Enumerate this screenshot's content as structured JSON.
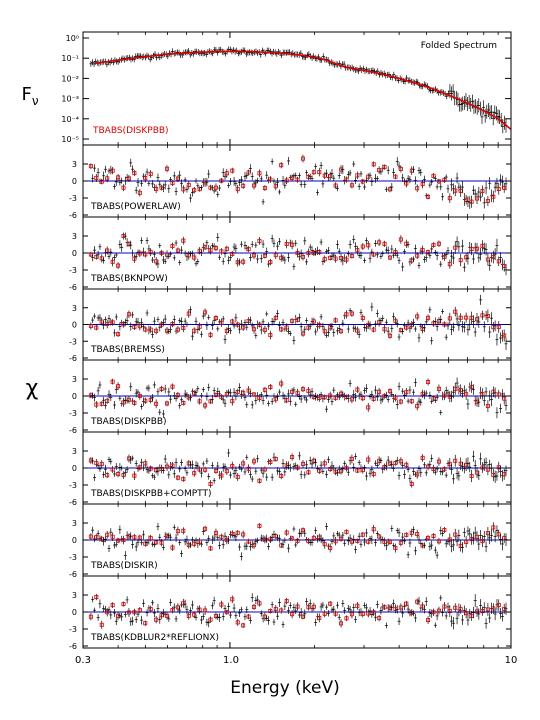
{
  "figure": {
    "xlabel": "Energy (keV)",
    "ylabel_top": "F",
    "ylabel_top_sub": "ν",
    "ylabel_resid": "χ",
    "top_note": "Folded Spectrum",
    "xtick_labels": [
      "0.3",
      "1.0",
      "10"
    ]
  },
  "chart_data": [
    {
      "type": "scatter",
      "panel": "spectrum",
      "title": "Folded Spectrum",
      "label": "TBABS(DISKPBB)",
      "label_color": "#dd0000",
      "xscale": "log",
      "yscale": "log",
      "xlim": [
        0.3,
        10
      ],
      "ylim": [
        1e-05,
        1
      ],
      "ytick_labels": [
        "10⁰",
        "10⁻¹",
        "10⁻²",
        "10⁻³",
        "10⁻⁴",
        "10⁻⁵"
      ],
      "data_color": "#000000",
      "model_color": "#dd0000",
      "model": {
        "x": [
          0.33,
          0.4,
          0.5,
          0.6,
          0.8,
          1.0,
          1.2,
          1.5,
          1.8,
          2.0,
          2.2,
          2.4,
          2.6,
          3.0,
          3.5,
          4.0,
          5.0,
          6.0,
          7.0,
          8.0,
          9.0,
          10.0
        ],
        "y": [
          0.055,
          0.08,
          0.12,
          0.16,
          0.2,
          0.22,
          0.21,
          0.18,
          0.14,
          0.11,
          0.08,
          0.05,
          0.035,
          0.025,
          0.016,
          0.01,
          0.004,
          0.0015,
          0.0006,
          0.00025,
          0.0001,
          3e-05
        ]
      }
    },
    {
      "type": "scatter",
      "panel": "residual",
      "label": "TBABS(POWERLAW)",
      "xscale": "log",
      "xlim": [
        0.3,
        10
      ],
      "ylim": [
        -6,
        6
      ],
      "ytick_labels": [
        "3",
        "0",
        "-3",
        "-6"
      ],
      "zero_line_color": "#0000cc",
      "trend": {
        "x": [
          0.33,
          0.4,
          0.5,
          0.7,
          1.0,
          1.5,
          2.0,
          3.0,
          4.0,
          5.0,
          6.0,
          7.0,
          8.0,
          9.0
        ],
        "y": [
          1.5,
          1.0,
          0.3,
          -0.8,
          -0.6,
          0.2,
          0.6,
          0.9,
          0.6,
          0.2,
          -0.8,
          -2.0,
          -2.8,
          -1.0
        ]
      },
      "scatter_sigma": 1.2
    },
    {
      "type": "scatter",
      "panel": "residual",
      "label": "TBABS(BKNPOW)",
      "xscale": "log",
      "xlim": [
        0.3,
        10
      ],
      "ylim": [
        -6,
        6
      ],
      "ytick_labels": [
        "3",
        "0",
        "-3",
        "-6"
      ],
      "zero_line_color": "#0000cc",
      "trend": {
        "x": [
          0.33,
          0.5,
          1.0,
          2.0,
          4.0,
          6.0,
          8.0,
          9.5
        ],
        "y": [
          0.4,
          0.2,
          0.0,
          0.1,
          0.0,
          -0.3,
          0.5,
          -2.0
        ]
      },
      "scatter_sigma": 1.1
    },
    {
      "type": "scatter",
      "panel": "residual",
      "label": "TBABS(BREMSS)",
      "xscale": "log",
      "xlim": [
        0.3,
        10
      ],
      "ylim": [
        -6,
        6
      ],
      "ytick_labels": [
        "3",
        "0",
        "-3",
        "-6"
      ],
      "zero_line_color": "#0000cc",
      "trend": {
        "x": [
          0.33,
          0.5,
          1.0,
          2.0,
          4.0,
          6.0,
          8.0,
          9.5
        ],
        "y": [
          0.2,
          0.1,
          0.0,
          0.0,
          0.0,
          -0.2,
          0.6,
          -2.5
        ]
      },
      "scatter_sigma": 1.1
    },
    {
      "type": "scatter",
      "panel": "residual",
      "label": "TBABS(DISKPBB)",
      "xscale": "log",
      "xlim": [
        0.3,
        10
      ],
      "ylim": [
        -6,
        6
      ],
      "ytick_labels": [
        "3",
        "0",
        "-3",
        "-6"
      ],
      "zero_line_color": "#0000cc",
      "trend": {
        "x": [
          0.33,
          0.5,
          1.0,
          2.0,
          4.0,
          6.0,
          8.0,
          9.5
        ],
        "y": [
          0.2,
          0.0,
          0.0,
          0.0,
          0.0,
          0.0,
          0.4,
          -1.0
        ]
      },
      "scatter_sigma": 1.1
    },
    {
      "type": "scatter",
      "panel": "residual",
      "label": "TBABS(DISKPBB+COMPTT)",
      "xscale": "log",
      "xlim": [
        0.3,
        10
      ],
      "ylim": [
        -6,
        6
      ],
      "ytick_labels": [
        "3",
        "0",
        "-3",
        "-6"
      ],
      "zero_line_color": "#0000cc",
      "trend": {
        "x": [
          0.33,
          0.5,
          1.0,
          2.0,
          4.0,
          6.0,
          8.0,
          9.5
        ],
        "y": [
          0.2,
          0.0,
          0.0,
          0.0,
          0.0,
          0.0,
          0.3,
          -1.5
        ]
      },
      "scatter_sigma": 1.1
    },
    {
      "type": "scatter",
      "panel": "residual",
      "label": "TBABS(DISKIR)",
      "xscale": "log",
      "xlim": [
        0.3,
        10
      ],
      "ylim": [
        -6,
        6
      ],
      "ytick_labels": [
        "3",
        "0",
        "-3",
        "-6"
      ],
      "zero_line_color": "#0000cc",
      "trend": {
        "x": [
          0.33,
          0.5,
          1.0,
          2.0,
          4.0,
          6.0,
          8.0,
          9.5
        ],
        "y": [
          0.2,
          0.0,
          0.0,
          0.0,
          0.0,
          0.0,
          0.3,
          -0.5
        ]
      },
      "scatter_sigma": 1.1
    },
    {
      "type": "scatter",
      "panel": "residual",
      "label": "TBABS(KDBLUR2*REFLIONX)",
      "xscale": "log",
      "xlim": [
        0.3,
        10
      ],
      "ylim": [
        -6,
        6
      ],
      "ytick_labels": [
        "3",
        "0",
        "-3",
        "-6"
      ],
      "zero_line_color": "#0000cc",
      "trend": {
        "x": [
          0.33,
          0.5,
          1.0,
          2.0,
          4.0,
          6.0,
          8.0,
          9.5
        ],
        "y": [
          0.2,
          0.0,
          0.0,
          0.0,
          0.0,
          0.0,
          0.3,
          0.0
        ]
      },
      "scatter_sigma": 1.1
    }
  ]
}
